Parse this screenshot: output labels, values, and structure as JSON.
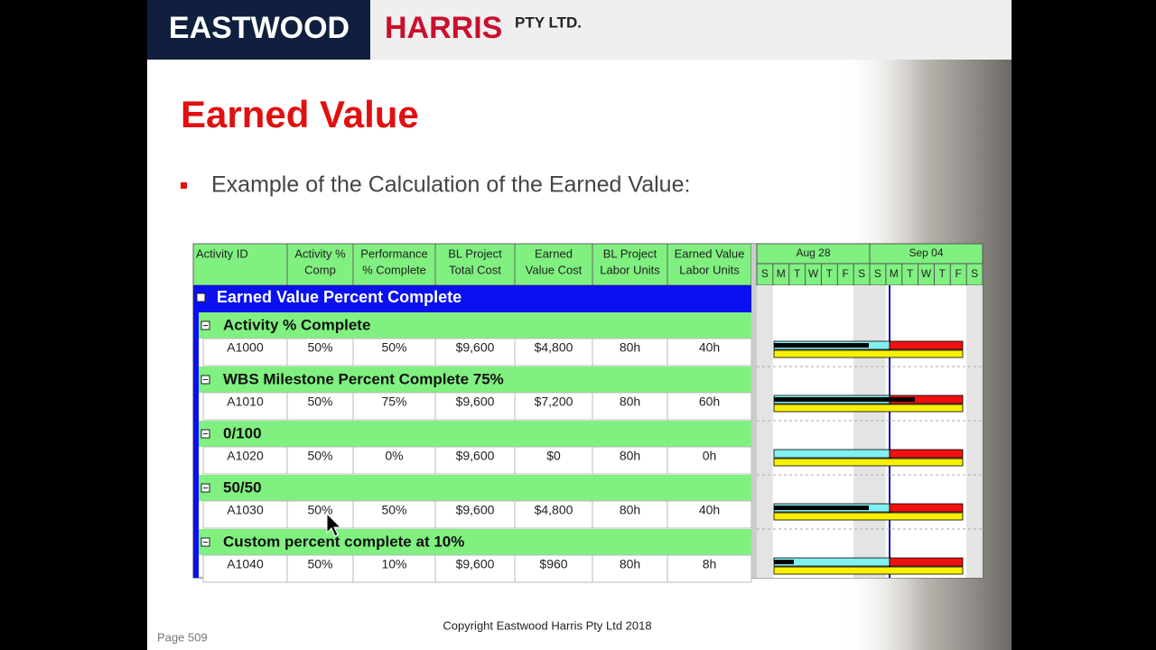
{
  "header": {
    "brand_main": "EASTWOOD",
    "brand_accent": "HARRIS",
    "brand_suffix": "PTY LTD."
  },
  "title": "Earned Value",
  "bullet": "Example of the Calculation of the Earned Value:",
  "table": {
    "columns": [
      [
        "Activity ID",
        ""
      ],
      [
        "Activity %",
        "Comp"
      ],
      [
        "Performance",
        "% Complete"
      ],
      [
        "BL Project",
        "Total Cost"
      ],
      [
        "Earned",
        "Value Cost"
      ],
      [
        "BL Project",
        "Labor Units"
      ],
      [
        "Earned Value",
        "Labor Units"
      ]
    ],
    "weeks": [
      "Aug 28",
      "Sep 04"
    ],
    "days": [
      "S",
      "M",
      "T",
      "W",
      "T",
      "F",
      "S",
      "S",
      "M",
      "T",
      "W",
      "T",
      "F",
      "S"
    ],
    "group": "Earned Value Percent Complete",
    "sections": [
      {
        "name": "Activity % Complete",
        "row": [
          "A1000",
          "50%",
          "50%",
          "$9,600",
          "$4,800",
          "80h",
          "40h"
        ]
      },
      {
        "name": "WBS Milestone Percent Complete 75%",
        "row": [
          "A1010",
          "50%",
          "75%",
          "$9,600",
          "$7,200",
          "80h",
          "60h"
        ]
      },
      {
        "name": "0/100",
        "row": [
          "A1020",
          "50%",
          "0%",
          "$9,600",
          "$0",
          "80h",
          "0h"
        ]
      },
      {
        "name": "50/50",
        "row": [
          "A1030",
          "50%",
          "50%",
          "$9,600",
          "$4,800",
          "80h",
          "40h"
        ]
      },
      {
        "name": "Custom percent complete at 10%",
        "row": [
          "A1040",
          "50%",
          "10%",
          "$9,600",
          "$960",
          "80h",
          "8h"
        ]
      }
    ]
  },
  "footer": {
    "copyright": "Copyright Eastwood Harris Pty Ltd 2018",
    "page": "Page 509"
  }
}
